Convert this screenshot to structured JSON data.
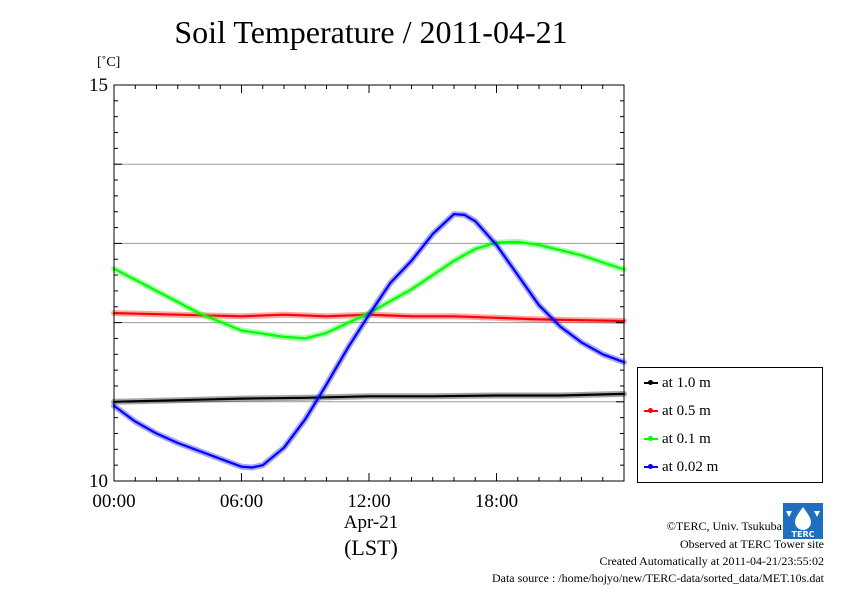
{
  "chart_data": {
    "type": "line",
    "title": "Soil Temperature / 2011-04-21",
    "ylabel": "[˚C]",
    "xlabel": "Apr-21",
    "xlabel2": "(LST)",
    "xlim": [
      0,
      24
    ],
    "ylim": [
      10,
      15
    ],
    "x_ticks": [
      {
        "value": 0,
        "label": "00:00"
      },
      {
        "value": 6,
        "label": "06:00"
      },
      {
        "value": 12,
        "label": "12:00"
      },
      {
        "value": 18,
        "label": "18:00"
      }
    ],
    "y_ticks": [
      {
        "value": 10,
        "label": "10"
      },
      {
        "value": 15,
        "label": "15"
      }
    ],
    "grid_y": [
      11,
      12,
      13,
      14
    ],
    "grid": true,
    "legend_position": "right",
    "series": [
      {
        "name": "at 1.0 m",
        "color": "#000000",
        "x": [
          0,
          3,
          6,
          9,
          12,
          15,
          18,
          21,
          24
        ],
        "y": [
          11.0,
          11.02,
          11.04,
          11.05,
          11.07,
          11.07,
          11.08,
          11.08,
          11.1
        ]
      },
      {
        "name": "at 0.5 m",
        "color": "#ff0000",
        "x": [
          0,
          3,
          6,
          8,
          10,
          12,
          14,
          16,
          18,
          20,
          22,
          24
        ],
        "y": [
          12.12,
          12.1,
          12.08,
          12.1,
          12.08,
          12.1,
          12.08,
          12.08,
          12.06,
          12.04,
          12.03,
          12.02
        ]
      },
      {
        "name": "at 0.1 m",
        "color": "#00ff00",
        "x": [
          0,
          2,
          4,
          6,
          8,
          9,
          10,
          12,
          14,
          16,
          17,
          18,
          19,
          20,
          22,
          24
        ],
        "y": [
          12.68,
          12.4,
          12.12,
          11.9,
          11.82,
          11.8,
          11.87,
          12.12,
          12.42,
          12.78,
          12.93,
          13.01,
          13.02,
          12.98,
          12.85,
          12.67
        ]
      },
      {
        "name": "at 0.02 m",
        "color": "#0000ff",
        "x": [
          0,
          1,
          2,
          3,
          4,
          5,
          6,
          6.5,
          7,
          8,
          9,
          10,
          11,
          12,
          13,
          14,
          15,
          16,
          16.5,
          17,
          18,
          19,
          20,
          21,
          22,
          23,
          24
        ],
        "y": [
          10.95,
          10.75,
          10.6,
          10.48,
          10.38,
          10.28,
          10.18,
          10.17,
          10.2,
          10.42,
          10.78,
          11.22,
          11.68,
          12.1,
          12.5,
          12.78,
          13.12,
          13.37,
          13.36,
          13.28,
          12.98,
          12.6,
          12.22,
          11.95,
          11.75,
          11.6,
          11.5
        ]
      }
    ]
  },
  "footer": {
    "copyright": "©TERC, Univ. Tsukuba",
    "observed": "Observed at TERC Tower site",
    "created": "Created Automatically at 2011-04-21/23:55:02",
    "source": "Data source : /home/hojyo/new/TERC-data/sorted_data/MET.10s.dat",
    "logo_text": "TERC"
  }
}
